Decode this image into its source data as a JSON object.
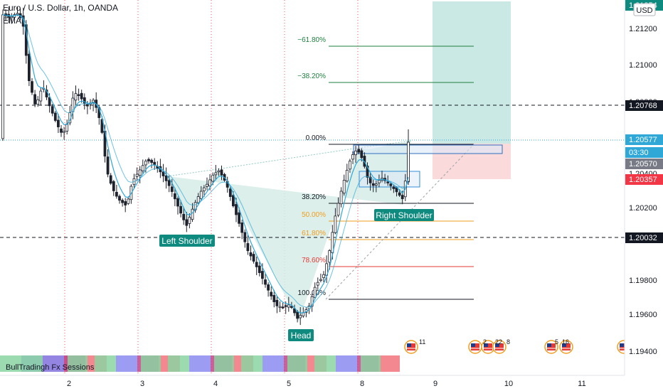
{
  "header": {
    "symbol_title": "Euro / U.S. Dollar, 1h, OANDA",
    "indicator_label": "EMA"
  },
  "currency_badge": "USD",
  "sessions_label": "BullTradingh Fx Sessions",
  "chart_data": {
    "type": "candlestick",
    "x_ticks": [
      "2",
      "3",
      "4",
      "5",
      "8",
      "9",
      "10",
      "11"
    ],
    "y_ticks": [
      "1.21200",
      "1.21000",
      "1.20800",
      "1.20400",
      "1.20200",
      "1.19800",
      "1.19600",
      "1.19400"
    ],
    "y_range": [
      1.1935,
      1.2135
    ],
    "price_tags": [
      {
        "label": "1.21354",
        "kind": "top",
        "value": 1.21354
      },
      {
        "label": "1.20768",
        "kind": "dark",
        "value": 1.20768
      },
      {
        "label": "1.20577",
        "kind": "blue",
        "value": 1.20577
      },
      {
        "label": "03:30",
        "kind": "blue",
        "value": 1.20527
      },
      {
        "label": "1.20570",
        "kind": "gray",
        "value": 1.2047
      },
      {
        "label": "1.20357",
        "kind": "red",
        "value": 1.20357
      },
      {
        "label": "1.20032",
        "kind": "dark",
        "value": 1.20032
      }
    ],
    "fib_levels": [
      {
        "label": "−61.80%",
        "color": "#1e7f3e"
      },
      {
        "label": "−38.20%",
        "color": "#1e7f3e"
      },
      {
        "label": "0.00%",
        "color": "#131722"
      },
      {
        "label": "38.20%",
        "color": "#131722"
      },
      {
        "label": "50.00%",
        "color": "#f29d1c"
      },
      {
        "label": "61.80%",
        "color": "#f29d1c"
      },
      {
        "label": "78.60%",
        "color": "#e53935"
      },
      {
        "label": "100.00%",
        "color": "#131722"
      }
    ],
    "pattern_labels": [
      "Left Shoulder",
      "Head",
      "Right Shoulder"
    ],
    "event_markers": [
      "11",
      "2",
      "22",
      "8",
      "5",
      "16"
    ],
    "colors": {
      "up": "#1e222d",
      "down": "#1e222d",
      "ema": "#2fa8d8",
      "pattern_fill": "#d6ece8",
      "profit_zone": "#cbe9e4",
      "loss_zone": "#fadadb",
      "pattern_label_bg": "#0e8a7e"
    }
  }
}
